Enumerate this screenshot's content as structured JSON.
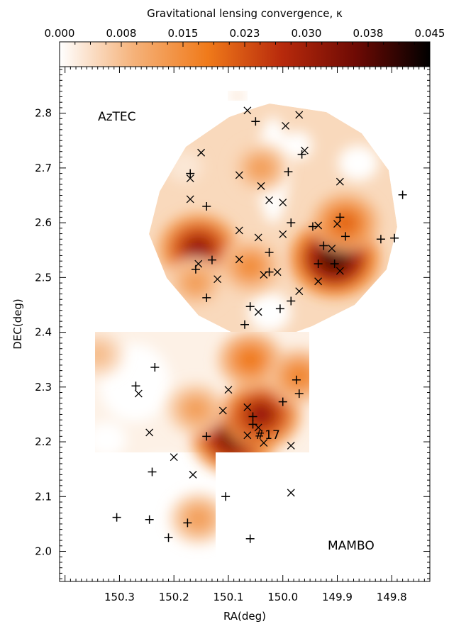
{
  "chart_data": {
    "type": "scatter",
    "colorbar": {
      "title": "Gravitational lensing convergence, κ",
      "ticks": [
        "0.000",
        "0.008",
        "0.015",
        "0.023",
        "0.030",
        "0.038",
        "0.045"
      ],
      "range": [
        0.0,
        0.045
      ],
      "colors": [
        "#ffffff",
        "#f5b27a",
        "#f07a1a",
        "#b82a0c",
        "#6e0a04",
        "#000000"
      ]
    },
    "xlabel": "RA(deg)",
    "ylabel": "DEC(deg)",
    "x_ticks": [
      "150.3",
      "150.2",
      "150.1",
      "150.0",
      "149.9",
      "149.8"
    ],
    "y_ticks": [
      "2.0",
      "2.1",
      "2.2",
      "2.3",
      "2.4",
      "2.5",
      "2.6",
      "2.7",
      "2.8"
    ],
    "xlim": [
      150.41,
      149.73
    ],
    "ylim": [
      1.945,
      2.885
    ],
    "annotations": {
      "aztec": "AzTEC",
      "mambo": "MAMBO",
      "source17": "#17"
    },
    "source17_position": [
      149.975,
      2.21
    ],
    "convergence_blobs": [
      {
        "ra": 150.155,
        "dec": 2.553,
        "kappa": 0.03
      },
      {
        "ra": 149.905,
        "dec": 2.535,
        "kappa": 0.038
      },
      {
        "ra": 149.885,
        "dec": 2.6,
        "kappa": 0.02
      },
      {
        "ra": 150.06,
        "dec": 2.52,
        "kappa": 0.015
      },
      {
        "ra": 150.16,
        "dec": 2.49,
        "kappa": 0.012
      },
      {
        "ra": 150.04,
        "dec": 2.7,
        "kappa": 0.012
      },
      {
        "ra": 150.09,
        "dec": 2.21,
        "kappa": 0.035
      },
      {
        "ra": 150.04,
        "dec": 2.25,
        "kappa": 0.03
      },
      {
        "ra": 150.06,
        "dec": 2.35,
        "kappa": 0.018
      },
      {
        "ra": 149.97,
        "dec": 2.32,
        "kappa": 0.016
      },
      {
        "ra": 150.16,
        "dec": 2.26,
        "kappa": 0.012
      },
      {
        "ra": 150.34,
        "dec": 2.36,
        "kappa": 0.008
      },
      {
        "ra": 150.155,
        "dec": 2.06,
        "kappa": 0.012
      }
    ],
    "series": [
      {
        "marker": "cross",
        "points": [
          [
            150.065,
            2.805
          ],
          [
            149.97,
            2.797
          ],
          [
            150.15,
            2.728
          ],
          [
            149.96,
            2.732
          ],
          [
            149.995,
            2.777
          ],
          [
            150.08,
            2.687
          ],
          [
            150.17,
            2.681
          ],
          [
            150.04,
            2.667
          ],
          [
            150.0,
            2.637
          ],
          [
            150.025,
            2.641
          ],
          [
            149.895,
            2.675
          ],
          [
            150.17,
            2.643
          ],
          [
            150.08,
            2.586
          ],
          [
            150.045,
            2.573
          ],
          [
            150.0,
            2.579
          ],
          [
            149.935,
            2.595
          ],
          [
            149.9,
            2.598
          ],
          [
            150.08,
            2.533
          ],
          [
            150.01,
            2.51
          ],
          [
            149.91,
            2.553
          ],
          [
            150.035,
            2.505
          ],
          [
            149.97,
            2.475
          ],
          [
            149.935,
            2.493
          ],
          [
            149.895,
            2.512
          ],
          [
            150.045,
            2.437
          ],
          [
            150.155,
            2.525
          ],
          [
            150.12,
            2.497
          ],
          [
            150.265,
            2.288
          ],
          [
            150.1,
            2.295
          ],
          [
            150.245,
            2.217
          ],
          [
            150.11,
            2.257
          ],
          [
            150.065,
            2.263
          ],
          [
            150.045,
            2.226
          ],
          [
            150.065,
            2.212
          ],
          [
            149.985,
            2.193
          ],
          [
            150.035,
            2.198
          ],
          [
            150.2,
            2.172
          ],
          [
            150.165,
            2.14
          ],
          [
            149.985,
            2.107
          ]
        ]
      },
      {
        "marker": "plus",
        "points": [
          [
            150.05,
            2.785
          ],
          [
            149.965,
            2.725
          ],
          [
            149.99,
            2.693
          ],
          [
            150.17,
            2.69
          ],
          [
            150.14,
            2.63
          ],
          [
            149.985,
            2.6
          ],
          [
            149.945,
            2.593
          ],
          [
            149.895,
            2.61
          ],
          [
            149.885,
            2.575
          ],
          [
            149.82,
            2.57
          ],
          [
            149.795,
            2.572
          ],
          [
            149.78,
            2.651
          ],
          [
            150.025,
            2.546
          ],
          [
            149.925,
            2.558
          ],
          [
            149.935,
            2.525
          ],
          [
            149.905,
            2.525
          ],
          [
            150.13,
            2.532
          ],
          [
            150.16,
            2.515
          ],
          [
            150.025,
            2.51
          ],
          [
            150.14,
            2.463
          ],
          [
            150.06,
            2.447
          ],
          [
            150.005,
            2.443
          ],
          [
            149.985,
            2.457
          ],
          [
            150.07,
            2.414
          ],
          [
            150.235,
            2.336
          ],
          [
            150.27,
            2.302
          ],
          [
            149.975,
            2.313
          ],
          [
            149.97,
            2.288
          ],
          [
            150.0,
            2.273
          ],
          [
            150.055,
            2.246
          ],
          [
            150.055,
            2.232
          ],
          [
            150.14,
            2.21
          ],
          [
            150.24,
            2.145
          ],
          [
            150.105,
            2.1
          ],
          [
            150.305,
            2.062
          ],
          [
            150.245,
            2.058
          ],
          [
            150.175,
            2.052
          ],
          [
            150.21,
            2.025
          ],
          [
            150.06,
            2.023
          ]
        ]
      }
    ]
  }
}
